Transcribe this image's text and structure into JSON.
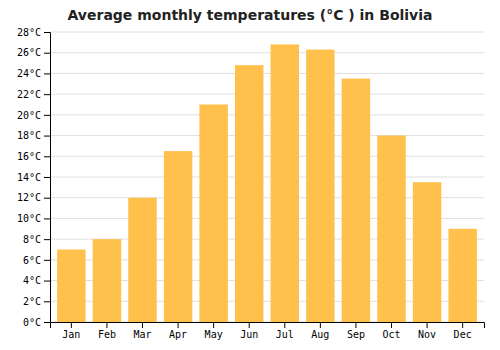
{
  "chart_data": {
    "type": "bar",
    "title": "Average monthly temperatures (°C ) in Bolivia",
    "categories": [
      "Jan",
      "Feb",
      "Mar",
      "Apr",
      "May",
      "Jun",
      "Jul",
      "Aug",
      "Sep",
      "Oct",
      "Nov",
      "Dec"
    ],
    "values": [
      7.0,
      8.0,
      12.0,
      16.5,
      21.0,
      24.8,
      26.8,
      26.3,
      23.5,
      18.0,
      13.5,
      9.0
    ],
    "color": "#FFC04C",
    "ylim": [
      0,
      28
    ],
    "yticks": [
      {
        "value": 0,
        "label": "0°C"
      },
      {
        "value": 2,
        "label": "2°C"
      },
      {
        "value": 4,
        "label": "4°C"
      },
      {
        "value": 6,
        "label": "6°C"
      },
      {
        "value": 8,
        "label": "8°C"
      },
      {
        "value": 10,
        "label": "10°C"
      },
      {
        "value": 12,
        "label": "12°C"
      },
      {
        "value": 14,
        "label": "14°C"
      },
      {
        "value": 16,
        "label": "16°C"
      },
      {
        "value": 18,
        "label": "18°C"
      },
      {
        "value": 20,
        "label": "20°C"
      },
      {
        "value": 22,
        "label": "22°C"
      },
      {
        "value": 24,
        "label": "24°C"
      },
      {
        "value": 26,
        "label": "26°C"
      },
      {
        "value": 28,
        "label": "28°C"
      }
    ],
    "grid": true
  }
}
